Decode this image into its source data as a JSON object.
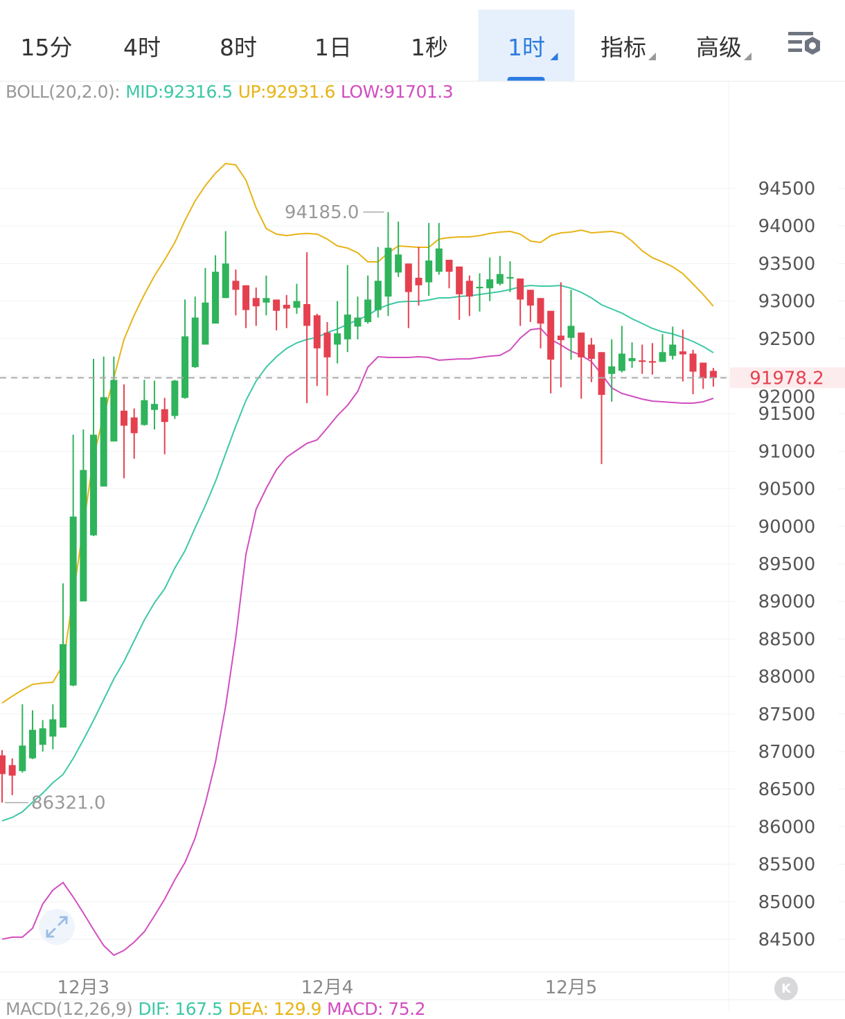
{
  "tabs": [
    {
      "label": "15分",
      "active": false,
      "dropdown": false
    },
    {
      "label": "4时",
      "active": false,
      "dropdown": false
    },
    {
      "label": "8时",
      "active": false,
      "dropdown": false
    },
    {
      "label": "1日",
      "active": false,
      "dropdown": false
    },
    {
      "label": "1秒",
      "active": false,
      "dropdown": false
    },
    {
      "label": "1时",
      "active": true,
      "dropdown": true
    },
    {
      "label": "指标",
      "active": false,
      "dropdown": true
    },
    {
      "label": "高级",
      "active": false,
      "dropdown": true
    }
  ],
  "settings_icon": "chart-settings-icon",
  "boll": {
    "name": "BOLL(20,2.0):",
    "mid": "MID:92316.5",
    "up": "UP:92931.6",
    "low": "LOW:91701.3"
  },
  "macd": {
    "name": "MACD(12,26,9)",
    "dif": "DIF: 167.5",
    "dea": "DEA: 129.9",
    "macd": "MACD: 75.2"
  },
  "colors": {
    "up": "#2fb35b",
    "down": "#e5404f",
    "mid": "#3dc8a6",
    "upper": "#e7b416",
    "lower": "#d24dbf",
    "text_gray": "#999999"
  },
  "chart_data": {
    "type": "candlestick",
    "interval": "1h",
    "ylim": [
      84066,
      95930
    ],
    "yticks": [
      "94500",
      "94000",
      "93500",
      "93000",
      "92500",
      "92000",
      "91500",
      "91000",
      "90500",
      "90000",
      "89500",
      "89000",
      "88500",
      "88000",
      "87500",
      "87000",
      "86500",
      "86000",
      "85500",
      "85000",
      "84500"
    ],
    "ytick_values": [
      94500,
      94000,
      93500,
      93000,
      92500,
      92000,
      91500,
      91000,
      90500,
      90000,
      89500,
      89000,
      88500,
      88000,
      87500,
      87000,
      86500,
      86000,
      85500,
      85000,
      84500
    ],
    "xlabels": [
      {
        "index": 8,
        "label": "12月3"
      },
      {
        "index": 32,
        "label": "12月4"
      },
      {
        "index": 56,
        "label": "12月5"
      }
    ],
    "last_price": 91978.2,
    "last_price_label": "91978.2",
    "max_label": "94185.0",
    "max_index": 38,
    "max_value": 94185,
    "min_label": "86321.0",
    "min_index": 0,
    "min_value": 86321,
    "ohlc": [
      [
        86950,
        86700,
        87020,
        86321
      ],
      [
        86820,
        86680,
        86910,
        86420
      ],
      [
        86740,
        87080,
        87630,
        86720
      ],
      [
        86910,
        87290,
        87550,
        86900
      ],
      [
        87090,
        87310,
        87420,
        87000
      ],
      [
        87200,
        87430,
        87630,
        87030
      ],
      [
        87320,
        88430,
        89240,
        87320
      ],
      [
        87880,
        90130,
        91220,
        87870
      ],
      [
        89000,
        90750,
        91290,
        89000
      ],
      [
        89880,
        91220,
        92230,
        89870
      ],
      [
        90530,
        91720,
        92260,
        90530
      ],
      [
        91130,
        91950,
        92260,
        91130
      ],
      [
        91540,
        91340,
        91890,
        90640
      ],
      [
        91450,
        91240,
        91570,
        90900
      ],
      [
        91350,
        91680,
        91950,
        91340
      ],
      [
        91550,
        91630,
        91940,
        91290
      ],
      [
        91560,
        91390,
        91710,
        90960
      ],
      [
        91470,
        91940,
        91950,
        91430
      ],
      [
        91710,
        92530,
        93020,
        91700
      ],
      [
        92120,
        92780,
        93060,
        92110
      ],
      [
        92420,
        92980,
        93440,
        92420
      ],
      [
        92700,
        93390,
        93610,
        92700
      ],
      [
        93040,
        93500,
        93930,
        93040
      ],
      [
        93270,
        93150,
        93420,
        92810
      ],
      [
        93210,
        92880,
        93210,
        92640
      ],
      [
        93040,
        92930,
        93180,
        92670
      ],
      [
        92980,
        93040,
        93340,
        92810
      ],
      [
        93020,
        92870,
        93020,
        92610
      ],
      [
        92950,
        92900,
        93080,
        92640
      ],
      [
        92910,
        93000,
        93230,
        92830
      ],
      [
        92960,
        92670,
        93650,
        91640
      ],
      [
        92810,
        92370,
        92830,
        91870
      ],
      [
        92580,
        92250,
        92720,
        91740
      ],
      [
        92420,
        92570,
        93000,
        92170
      ],
      [
        92490,
        92820,
        93480,
        92320
      ],
      [
        92660,
        92780,
        93060,
        92490
      ],
      [
        92720,
        93020,
        93340,
        92700
      ],
      [
        92880,
        93270,
        93720,
        92780
      ],
      [
        93060,
        93710,
        94185,
        92800
      ],
      [
        93380,
        93620,
        94060,
        93320
      ],
      [
        93500,
        93120,
        93500,
        92640
      ],
      [
        93310,
        93210,
        93720,
        92940
      ],
      [
        93250,
        93540,
        94040,
        93070
      ],
      [
        93390,
        93700,
        94040,
        93350
      ],
      [
        93550,
        93390,
        93550,
        93170
      ],
      [
        93460,
        93090,
        93460,
        92750
      ],
      [
        93270,
        93060,
        93340,
        92800
      ],
      [
        93170,
        93190,
        93370,
        92860
      ],
      [
        93170,
        93290,
        93580,
        93000
      ],
      [
        93230,
        93360,
        93600,
        93210
      ],
      [
        93300,
        93320,
        93530,
        93120
      ],
      [
        93300,
        93020,
        93300,
        92670
      ],
      [
        93150,
        92940,
        93150,
        92720
      ],
      [
        93040,
        92700,
        93040,
        92370
      ],
      [
        92870,
        92220,
        92870,
        91770
      ],
      [
        92540,
        92480,
        93250,
        91850
      ],
      [
        92510,
        92670,
        93150,
        92220
      ],
      [
        92580,
        92250,
        92580,
        91700
      ],
      [
        92420,
        92230,
        92510,
        91920
      ],
      [
        92320,
        91750,
        92320,
        90830
      ],
      [
        92030,
        92130,
        92490,
        91660
      ],
      [
        92070,
        92300,
        92670,
        92050
      ],
      [
        92200,
        92240,
        92450,
        92110
      ],
      [
        92210,
        92190,
        92420,
        92030
      ],
      [
        92200,
        92180,
        92440,
        92020
      ],
      [
        92190,
        92320,
        92560,
        92190
      ],
      [
        92270,
        92420,
        92660,
        92220
      ],
      [
        92330,
        92290,
        92620,
        91930
      ],
      [
        92300,
        92060,
        92350,
        91760
      ],
      [
        92180,
        91970,
        92180,
        91830
      ],
      [
        92070,
        91978.2,
        92110,
        91860
      ]
    ],
    "series": [
      {
        "name": "UP",
        "values": [
          87646,
          87738,
          87821,
          87895,
          87913,
          87922,
          88153,
          89075,
          89998,
          90920,
          91474,
          91981,
          92489,
          92812,
          93088,
          93337,
          93550,
          93780,
          94075,
          94334,
          94537,
          94703,
          94832,
          94813,
          94610,
          94241,
          93965,
          93891,
          93872,
          93891,
          93900,
          93891,
          93826,
          93734,
          93706,
          93642,
          93522,
          93522,
          93642,
          93734,
          93725,
          93716,
          93716,
          93826,
          93845,
          93854,
          93854,
          93872,
          93900,
          93919,
          93928,
          93891,
          93799,
          93780,
          93872,
          93909,
          93919,
          93946,
          93909,
          93919,
          93928,
          93900,
          93799,
          93670,
          93577,
          93522,
          93457,
          93365,
          93227,
          93088,
          92932
        ]
      },
      {
        "name": "MID",
        "values": [
          86078,
          86123,
          86197,
          86326,
          86446,
          86585,
          86695,
          86908,
          87157,
          87415,
          87692,
          87968,
          88199,
          88476,
          88753,
          88983,
          89168,
          89444,
          89675,
          89980,
          90275,
          90598,
          90967,
          91336,
          91677,
          91935,
          92120,
          92258,
          92369,
          92443,
          92489,
          92516,
          92581,
          92627,
          92692,
          92747,
          92812,
          92895,
          92950,
          92987,
          92996,
          92996,
          93015,
          93042,
          93042,
          93061,
          93070,
          93088,
          93107,
          93125,
          93153,
          93190,
          93208,
          93199,
          93199,
          93208,
          93171,
          93116,
          93042,
          92950,
          92895,
          92839,
          92765,
          92701,
          92636,
          92590,
          92563,
          92516,
          92461,
          92396,
          92313
        ]
      },
      {
        "name": "LOW",
        "values": [
          84501,
          84528,
          84528,
          84647,
          84970,
          85155,
          85256,
          85063,
          84850,
          84629,
          84417,
          84288,
          84352,
          84463,
          84601,
          84814,
          85035,
          85293,
          85524,
          85847,
          86308,
          86861,
          87599,
          88522,
          89629,
          90229,
          90505,
          90754,
          90920,
          91013,
          91105,
          91151,
          91308,
          91474,
          91612,
          91797,
          92120,
          92258,
          92249,
          92249,
          92249,
          92258,
          92249,
          92212,
          92221,
          92230,
          92230,
          92249,
          92267,
          92277,
          92350,
          92507,
          92618,
          92636,
          92489,
          92415,
          92332,
          92277,
          92194,
          92027,
          91843,
          91769,
          91732,
          91695,
          91668,
          91659,
          91649,
          91640,
          91640,
          91659,
          91705
        ]
      }
    ]
  },
  "k_button": "K",
  "expand_icon": "expand-arrows-icon"
}
